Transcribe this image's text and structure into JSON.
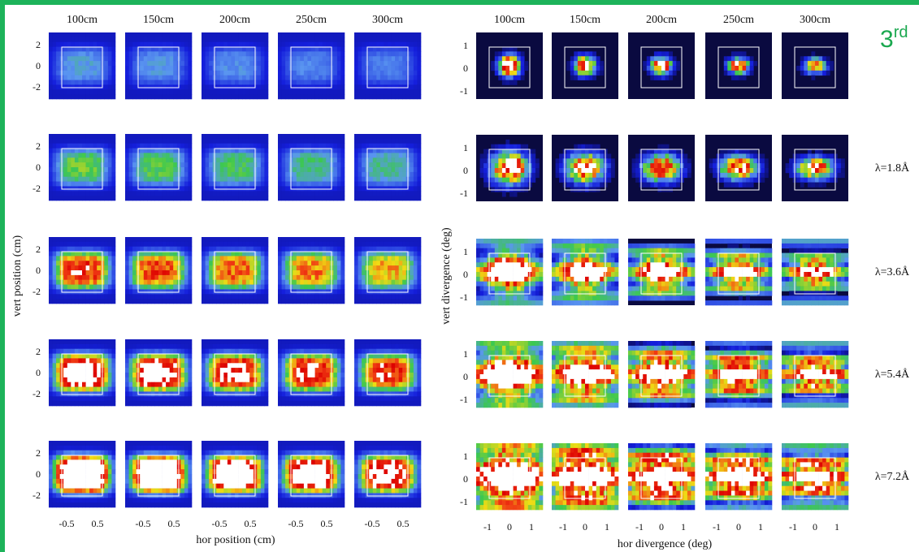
{
  "label": {
    "base": "3",
    "sup": "rd"
  },
  "left": {
    "columns": [
      "100cm",
      "150cm",
      "200cm",
      "250cm",
      "300cm"
    ],
    "yticks": [
      "2",
      "0",
      "-2"
    ],
    "xticks": [
      "-0.5",
      "0.5"
    ],
    "xlabel": "hor position (cm)",
    "ylabel": "vert position (cm)"
  },
  "right": {
    "columns": [
      "100cm",
      "150cm",
      "200cm",
      "250cm",
      "300cm"
    ],
    "yticks": [
      "1",
      "0",
      "-1"
    ],
    "xticks": [
      "-1",
      "0",
      "1"
    ],
    "xlabel": "hor divergence (deg)",
    "ylabel": "vert divergence (deg)"
  },
  "wavelengths": [
    "λ=1.8Å",
    "λ=3.6Å",
    "λ=5.4Å",
    "λ=7.2Å"
  ]
}
